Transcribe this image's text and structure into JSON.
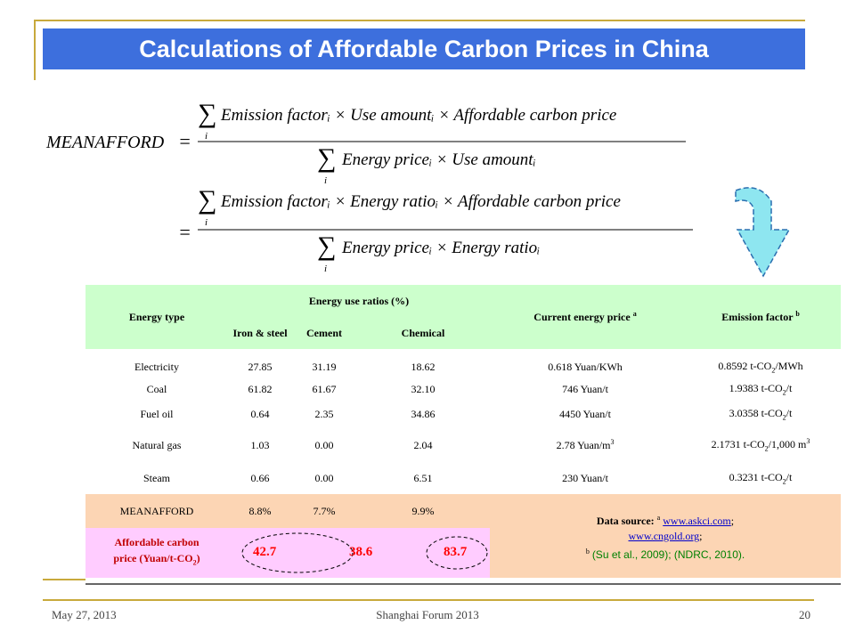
{
  "slide": {
    "title": "Calculations of Affordable Carbon Prices in China"
  },
  "formula": {
    "lhs": "MEANAFFORD",
    "eq1_numerator": "Emission factorᵢ × Use amountᵢ × Affordable carbon price",
    "eq1_denominator": "Energy priceᵢ × Use amountᵢ",
    "eq2_numerator": "Emission factorᵢ × Energy ratioᵢ × Affordable carbon price",
    "eq2_denominator": "Energy priceᵢ × Energy ratioᵢ",
    "sum_index": "i"
  },
  "table": {
    "header": {
      "energy_type": "Energy type",
      "energy_use_ratios": "Energy use ratios (%)",
      "iron_steel": "Iron & steel",
      "cement": "Cement",
      "chemical": "Chemical",
      "current_price": "Current energy price",
      "current_price_note": "a",
      "emission_factor": "Emission factor",
      "emission_factor_note": "b"
    },
    "rows": [
      {
        "type": "Electricity",
        "iron": "27.85",
        "cement": "31.19",
        "chem": "18.62",
        "price": "0.618 Yuan/KWh",
        "ef_a": "0.8592 t-CO",
        "ef_sub": "2",
        "ef_b": "/MWh",
        "ef_sup": ""
      },
      {
        "type": "Coal",
        "iron": "61.82",
        "cement": "61.67",
        "chem": "32.10",
        "price": "746 Yuan/t",
        "ef_a": "1.9383 t-CO",
        "ef_sub": "2",
        "ef_b": "/t",
        "ef_sup": ""
      },
      {
        "type": "Fuel oil",
        "iron": "0.64",
        "cement": "2.35",
        "chem": "34.86",
        "price": "4450 Yuan/t",
        "ef_a": "3.0358 t-CO",
        "ef_sub": "2",
        "ef_b": "/t",
        "ef_sup": ""
      },
      {
        "type": "Natural gas",
        "iron": "1.03",
        "cement": "0.00",
        "chem": "2.04",
        "price": "2.78 Yuan/m",
        "price_sup": "3",
        "ef_a": "2.1731 t-CO",
        "ef_sub": "2",
        "ef_b": "/1,000 m",
        "ef_sup": "3"
      },
      {
        "type": "Steam",
        "iron": "0.66",
        "cement": "0.00",
        "chem": "6.51",
        "price": "230 Yuan/t",
        "ef_a": "0.3231 t-CO",
        "ef_sub": "2",
        "ef_b": "/t",
        "ef_sup": ""
      }
    ],
    "meanafford": {
      "label": "MEANAFFORD",
      "iron": "8.8%",
      "cement": "7.7%",
      "chem": "9.9%"
    },
    "affordable": {
      "label_line1": "Affordable carbon",
      "label_line2": "price (Yuan/t-CO",
      "label_sub": "2",
      "label_end": ")",
      "iron": "42.7",
      "cement": "38.6",
      "chem": "83.7"
    },
    "source": {
      "label": "Data source:",
      "note_a": "a",
      "link1": "www.askci.com",
      "sep1": ";",
      "link2": "www.cngold.org",
      "sep2": ";",
      "note_b": "b",
      "refs": "(Su et al., 2009); (NDRC, 2010)."
    }
  },
  "footer": {
    "date": "May 27, 2013",
    "event": "Shanghai Forum 2013",
    "page": "20"
  },
  "colors": {
    "title_bar": "#3d6fdd",
    "header_bg": "#ccffcc",
    "mean_bg": "#fcd5b4",
    "affordable_bg": "#ffccff",
    "arrow_fill": "#8ee6f0",
    "frame": "#c8a93c",
    "highlight_red": "#ff0000"
  }
}
